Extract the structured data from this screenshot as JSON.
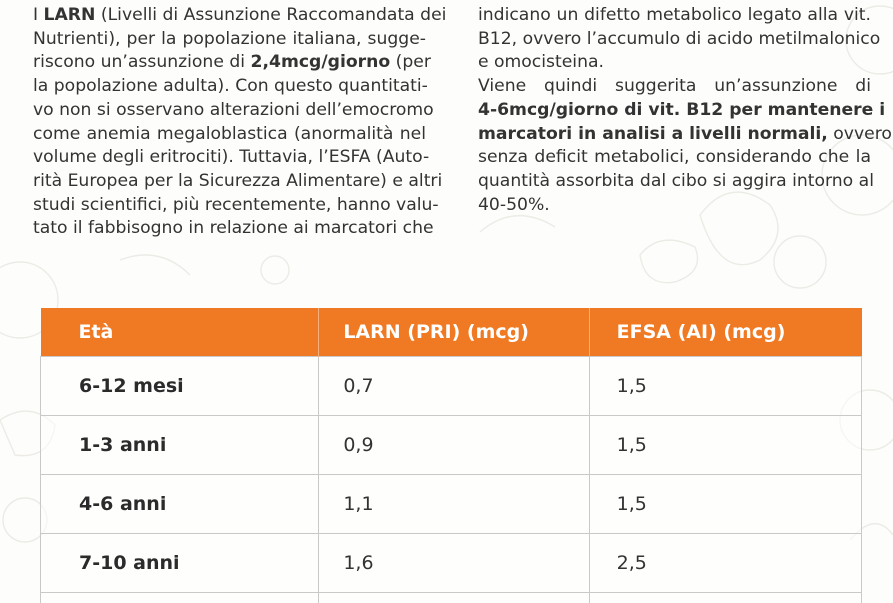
{
  "left_column": {
    "lines": [
      {
        "pre": "I ",
        "bold": "LARN",
        "post": " (Livelli di Assunzione Raccomandata dei"
      },
      {
        "pre": "Nutrienti), per la popolazione italiana, sugge-",
        "bold": "",
        "post": ""
      },
      {
        "pre": "riscono un’assunzione di ",
        "bold": "2,4mcg/giorno",
        "post": " (per"
      },
      {
        "pre": "la popolazione adulta). Con questo quantitati-",
        "bold": "",
        "post": ""
      },
      {
        "pre": "vo non si osservano alterazioni dell’emocromo",
        "bold": "",
        "post": ""
      },
      {
        "pre": "come anemia megaloblastica (anormalità nel",
        "bold": "",
        "post": ""
      },
      {
        "pre": "volume degli eritrociti). Tuttavia, l’ESFA (Auto-",
        "bold": "",
        "post": ""
      },
      {
        "pre": "rità Europea per la Sicurezza Alimentare) e altri",
        "bold": "",
        "post": ""
      },
      {
        "pre": "studi scientifici, più recentemente, hanno valu-",
        "bold": "",
        "post": ""
      },
      {
        "pre": "tato il fabbisogno in relazione ai marcatori che",
        "bold": "",
        "post": ""
      }
    ]
  },
  "right_column": {
    "lines": [
      {
        "pre": "indicano un difetto metabolico legato alla vit.",
        "bold": "",
        "post": ""
      },
      {
        "pre": "B12, ovvero l’accumulo di acido metilmalonico",
        "bold": "",
        "post": ""
      },
      {
        "pre": "e omocisteina.",
        "bold": "",
        "post": ""
      },
      {
        "pre": "Viene quindi suggerita un’assunzione di",
        "bold": "",
        "post": ""
      },
      {
        "pre": "",
        "bold": "4-6mcg/giorno di vit. B12 per mantenere i",
        "post": ""
      },
      {
        "pre": "",
        "bold": "marcatori in analisi a livelli normali,",
        "post": " ovvero"
      },
      {
        "pre": "senza deficit metabolici, considerando che la",
        "bold": "",
        "post": ""
      },
      {
        "pre": "quantità assorbita dal cibo si aggira intorno al",
        "bold": "",
        "post": ""
      },
      {
        "pre": "40-50%.",
        "bold": "",
        "post": ""
      }
    ]
  },
  "table": {
    "headers": [
      "Età",
      "LARN (PRI) (mcg)",
      "EFSA (AI) (mcg)"
    ],
    "rows": [
      {
        "age": "6-12 mesi",
        "larn": "0,7",
        "efsa": "1,5"
      },
      {
        "age": "1-3 anni",
        "larn": "0,9",
        "efsa": "1,5"
      },
      {
        "age": "4-6 anni",
        "larn": "1,1",
        "efsa": "1,5"
      },
      {
        "age": "7-10 anni",
        "larn": "1,6",
        "efsa": "2,5"
      }
    ]
  },
  "colors": {
    "header_orange": "#ef7a23",
    "text": "#333333",
    "grid": "#c9c9c9"
  }
}
